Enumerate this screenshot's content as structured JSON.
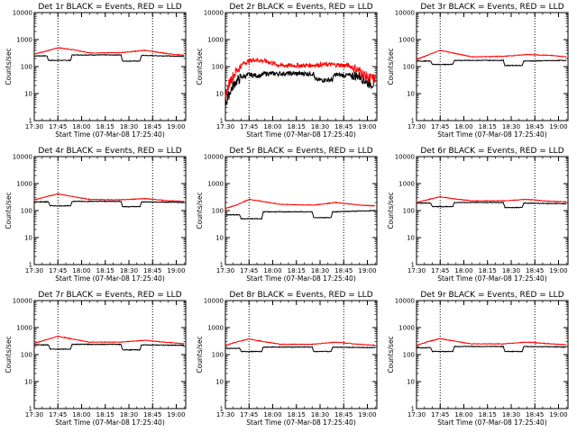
{
  "chart_data": [
    {
      "type": "line",
      "title": "Det 1r BLACK = Events, RED = LLD",
      "xlabel": "Start Time (07-Mar-08 17:25:40)",
      "ylabel": "Counts/sec",
      "y_scale": "log",
      "ylim": [
        1,
        10000
      ],
      "y_tick_labels": [
        "1",
        "10",
        "100",
        "1000",
        "10000"
      ],
      "x_tick_labels": [
        "17:30",
        "17:45",
        "18:00",
        "18:15",
        "18:30",
        "18:45",
        "19:00"
      ],
      "xlim_minutes": [
        17.5,
        19.1
      ],
      "markers": [
        "17:45",
        "18:45"
      ],
      "series": [
        {
          "name": "Events",
          "color": "#000000",
          "x": [
            "17:30",
            "17:38",
            "17:39",
            "17:53",
            "17:54",
            "18:25",
            "18:26",
            "18:37",
            "18:38",
            "19:05"
          ],
          "values": [
            250,
            250,
            170,
            170,
            270,
            270,
            160,
            160,
            260,
            240
          ]
        },
        {
          "name": "LLD",
          "color": "#ff0000",
          "x": [
            "17:30",
            "17:40",
            "17:45",
            "17:55",
            "18:05",
            "18:25",
            "18:40",
            "18:55",
            "19:05"
          ],
          "values": [
            290,
            410,
            500,
            420,
            320,
            330,
            400,
            300,
            260
          ]
        }
      ]
    },
    {
      "type": "line",
      "title": "Det 2r BLACK = Events, RED = LLD",
      "xlabel": "Start Time (07-Mar-08 17:25:40)",
      "ylabel": "Counts/sec",
      "y_scale": "log",
      "ylim": [
        1,
        10000
      ],
      "y_tick_labels": [
        "1",
        "10",
        "100",
        "1000",
        "10000"
      ],
      "x_tick_labels": [
        "17:30",
        "17:45",
        "18:00",
        "18:15",
        "18:30",
        "18:45",
        "19:00"
      ],
      "xlim_minutes": [
        17.5,
        19.1
      ],
      "markers": [
        "17:45",
        "18:45"
      ],
      "series": [
        {
          "name": "Events",
          "color": "#000000",
          "x": [
            "17:30",
            "17:33",
            "17:36",
            "17:40",
            "17:45",
            "17:53",
            "17:54",
            "18:26",
            "18:27",
            "18:38",
            "18:39",
            "18:55",
            "19:00",
            "19:05"
          ],
          "values": [
            4,
            12,
            25,
            40,
            50,
            45,
            55,
            55,
            32,
            32,
            50,
            45,
            25,
            22
          ]
        },
        {
          "name": "LLD",
          "color": "#ff0000",
          "x": [
            "17:30",
            "17:33",
            "17:37",
            "17:42",
            "17:48",
            "17:55",
            "18:05",
            "18:20",
            "18:35",
            "18:48",
            "18:55",
            "19:00",
            "19:05"
          ],
          "values": [
            8,
            30,
            70,
            140,
            180,
            160,
            110,
            110,
            120,
            110,
            70,
            40,
            35
          ]
        }
      ]
    },
    {
      "type": "line",
      "title": "Det 3r BLACK = Events, RED = LLD",
      "xlabel": "Start Time (07-Mar-08 17:25:40)",
      "ylabel": "Counts/sec",
      "y_scale": "log",
      "ylim": [
        1,
        10000
      ],
      "y_tick_labels": [
        "1",
        "10",
        "100",
        "1000",
        "10000"
      ],
      "x_tick_labels": [
        "17:30",
        "17:45",
        "18:00",
        "18:15",
        "18:30",
        "18:45",
        "19:00"
      ],
      "xlim_minutes": [
        17.5,
        19.1
      ],
      "markers": [
        "17:45",
        "18:45"
      ],
      "series": [
        {
          "name": "Events",
          "color": "#000000",
          "x": [
            "17:30",
            "17:39",
            "17:40",
            "17:53",
            "17:54",
            "18:25",
            "18:26",
            "18:37",
            "18:38",
            "19:05"
          ],
          "values": [
            160,
            160,
            120,
            120,
            170,
            170,
            110,
            110,
            160,
            170
          ]
        },
        {
          "name": "LLD",
          "color": "#ff0000",
          "x": [
            "17:30",
            "17:38",
            "17:45",
            "17:52",
            "18:05",
            "18:25",
            "18:40",
            "18:55",
            "19:05"
          ],
          "values": [
            180,
            280,
            400,
            330,
            230,
            240,
            280,
            260,
            230
          ]
        }
      ]
    },
    {
      "type": "line",
      "title": "Det 4r BLACK = Events, RED = LLD",
      "xlabel": "Start Time (07-Mar-08 17:25:40)",
      "ylabel": "Counts/sec",
      "y_scale": "log",
      "ylim": [
        1,
        10000
      ],
      "y_tick_labels": [
        "1",
        "10",
        "100",
        "1000",
        "10000"
      ],
      "x_tick_labels": [
        "17:30",
        "17:45",
        "18:00",
        "18:15",
        "18:30",
        "18:45",
        "19:00"
      ],
      "xlim_minutes": [
        17.5,
        19.1
      ],
      "markers": [
        "17:45",
        "18:45"
      ],
      "series": [
        {
          "name": "Events",
          "color": "#000000",
          "x": [
            "17:30",
            "17:39",
            "17:40",
            "17:53",
            "17:54",
            "18:25",
            "18:26",
            "18:37",
            "18:38",
            "19:05"
          ],
          "values": [
            210,
            210,
            150,
            150,
            220,
            220,
            140,
            140,
            210,
            200
          ]
        },
        {
          "name": "LLD",
          "color": "#ff0000",
          "x": [
            "17:30",
            "17:38",
            "17:45",
            "17:52",
            "18:05",
            "18:25",
            "18:40",
            "18:55",
            "19:05"
          ],
          "values": [
            250,
            330,
            420,
            350,
            260,
            250,
            280,
            230,
            220
          ]
        }
      ]
    },
    {
      "type": "line",
      "title": "Det 5r BLACK = Events, RED = LLD",
      "xlabel": "Start Time (07-Mar-08 17:25:40)",
      "ylabel": "Counts/sec",
      "y_scale": "log",
      "ylim": [
        1,
        10000
      ],
      "y_tick_labels": [
        "1",
        "10",
        "100",
        "1000",
        "10000"
      ],
      "x_tick_labels": [
        "17:30",
        "17:45",
        "18:00",
        "18:15",
        "18:30",
        "18:45",
        "19:00"
      ],
      "xlim_minutes": [
        17.5,
        19.1
      ],
      "markers": [
        "17:45",
        "18:45"
      ],
      "series": [
        {
          "name": "Events",
          "color": "#000000",
          "x": [
            "17:30",
            "17:39",
            "17:40",
            "17:53",
            "17:54",
            "18:25",
            "18:26",
            "18:37",
            "18:38",
            "19:05"
          ],
          "values": [
            70,
            70,
            50,
            50,
            90,
            90,
            55,
            55,
            90,
            100
          ]
        },
        {
          "name": "LLD",
          "color": "#ff0000",
          "x": [
            "17:30",
            "17:37",
            "17:45",
            "17:53",
            "18:05",
            "18:25",
            "18:40",
            "18:55",
            "19:05"
          ],
          "values": [
            120,
            160,
            260,
            220,
            170,
            160,
            200,
            160,
            150
          ]
        }
      ]
    },
    {
      "type": "line",
      "title": "Det 6r BLACK = Events, RED = LLD",
      "xlabel": "Start Time (07-Mar-08 17:25:40)",
      "ylabel": "Counts/sec",
      "y_scale": "log",
      "ylim": [
        1,
        10000
      ],
      "y_tick_labels": [
        "1",
        "10",
        "100",
        "1000",
        "10000"
      ],
      "x_tick_labels": [
        "17:30",
        "17:45",
        "18:00",
        "18:15",
        "18:30",
        "18:45",
        "19:00"
      ],
      "xlim_minutes": [
        17.5,
        19.1
      ],
      "markers": [
        "17:45",
        "18:45"
      ],
      "series": [
        {
          "name": "Events",
          "color": "#000000",
          "x": [
            "17:30",
            "17:39",
            "17:40",
            "17:53",
            "17:54",
            "18:25",
            "18:26",
            "18:37",
            "18:38",
            "19:05"
          ],
          "values": [
            190,
            190,
            140,
            140,
            200,
            200,
            130,
            130,
            190,
            180
          ]
        },
        {
          "name": "LLD",
          "color": "#ff0000",
          "x": [
            "17:30",
            "17:38",
            "17:45",
            "17:52",
            "18:05",
            "18:25",
            "18:40",
            "18:55",
            "19:05"
          ],
          "values": [
            200,
            260,
            330,
            280,
            230,
            230,
            260,
            220,
            210
          ]
        }
      ]
    },
    {
      "type": "line",
      "title": "Det 7r BLACK = Events, RED = LLD",
      "xlabel": "Start Time (07-Mar-08 17:25:40)",
      "ylabel": "Counts/sec",
      "y_scale": "log",
      "ylim": [
        1,
        10000
      ],
      "y_tick_labels": [
        "1",
        "10",
        "100",
        "1000",
        "10000"
      ],
      "x_tick_labels": [
        "17:30",
        "17:45",
        "18:00",
        "18:15",
        "18:30",
        "18:45",
        "19:00"
      ],
      "xlim_minutes": [
        17.5,
        19.1
      ],
      "markers": [
        "17:45",
        "18:45"
      ],
      "series": [
        {
          "name": "Events",
          "color": "#000000",
          "x": [
            "17:30",
            "17:39",
            "17:40",
            "17:53",
            "17:54",
            "18:25",
            "18:26",
            "18:37",
            "18:38",
            "19:05"
          ],
          "values": [
            230,
            230,
            160,
            160,
            240,
            240,
            150,
            150,
            230,
            220
          ]
        },
        {
          "name": "LLD",
          "color": "#ff0000",
          "x": [
            "17:30",
            "17:38",
            "17:45",
            "17:52",
            "18:05",
            "18:25",
            "18:40",
            "18:55",
            "19:05"
          ],
          "values": [
            260,
            360,
            480,
            400,
            290,
            290,
            340,
            280,
            250
          ]
        }
      ]
    },
    {
      "type": "line",
      "title": "Det 8r BLACK = Events, RED = LLD",
      "xlabel": "Start Time (07-Mar-08 17:25:40)",
      "ylabel": "Counts/sec",
      "y_scale": "log",
      "ylim": [
        1,
        10000
      ],
      "y_tick_labels": [
        "1",
        "10",
        "100",
        "1000",
        "10000"
      ],
      "x_tick_labels": [
        "17:30",
        "17:45",
        "18:00",
        "18:15",
        "18:30",
        "18:45",
        "19:00"
      ],
      "xlim_minutes": [
        17.5,
        19.1
      ],
      "markers": [
        "17:45",
        "18:45"
      ],
      "series": [
        {
          "name": "Events",
          "color": "#000000",
          "x": [
            "17:30",
            "17:39",
            "17:40",
            "17:53",
            "17:54",
            "18:25",
            "18:26",
            "18:37",
            "18:38",
            "19:05"
          ],
          "values": [
            170,
            170,
            130,
            130,
            190,
            190,
            130,
            130,
            190,
            180
          ]
        },
        {
          "name": "LLD",
          "color": "#ff0000",
          "x": [
            "17:30",
            "17:38",
            "17:45",
            "17:52",
            "18:05",
            "18:25",
            "18:40",
            "18:55",
            "19:05"
          ],
          "values": [
            220,
            300,
            380,
            320,
            240,
            240,
            290,
            240,
            220
          ]
        }
      ]
    },
    {
      "type": "line",
      "title": "Det 9r BLACK = Events, RED = LLD",
      "xlabel": "Start Time (07-Mar-08 17:25:40)",
      "ylabel": "Counts/sec",
      "y_scale": "log",
      "ylim": [
        1,
        10000
      ],
      "y_tick_labels": [
        "1",
        "10",
        "100",
        "1000",
        "10000"
      ],
      "x_tick_labels": [
        "17:30",
        "17:45",
        "18:00",
        "18:15",
        "18:30",
        "18:45",
        "19:00"
      ],
      "xlim_minutes": [
        17.5,
        19.1
      ],
      "markers": [
        "17:45",
        "18:45"
      ],
      "series": [
        {
          "name": "Events",
          "color": "#000000",
          "x": [
            "17:30",
            "17:39",
            "17:40",
            "17:53",
            "17:54",
            "18:25",
            "18:26",
            "18:37",
            "18:38",
            "19:05"
          ],
          "values": [
            180,
            180,
            130,
            130,
            200,
            200,
            130,
            130,
            200,
            190
          ]
        },
        {
          "name": "LLD",
          "color": "#ff0000",
          "x": [
            "17:30",
            "17:38",
            "17:45",
            "17:52",
            "18:05",
            "18:25",
            "18:40",
            "18:55",
            "19:05"
          ],
          "values": [
            220,
            310,
            390,
            330,
            250,
            250,
            290,
            250,
            230
          ]
        }
      ]
    }
  ]
}
